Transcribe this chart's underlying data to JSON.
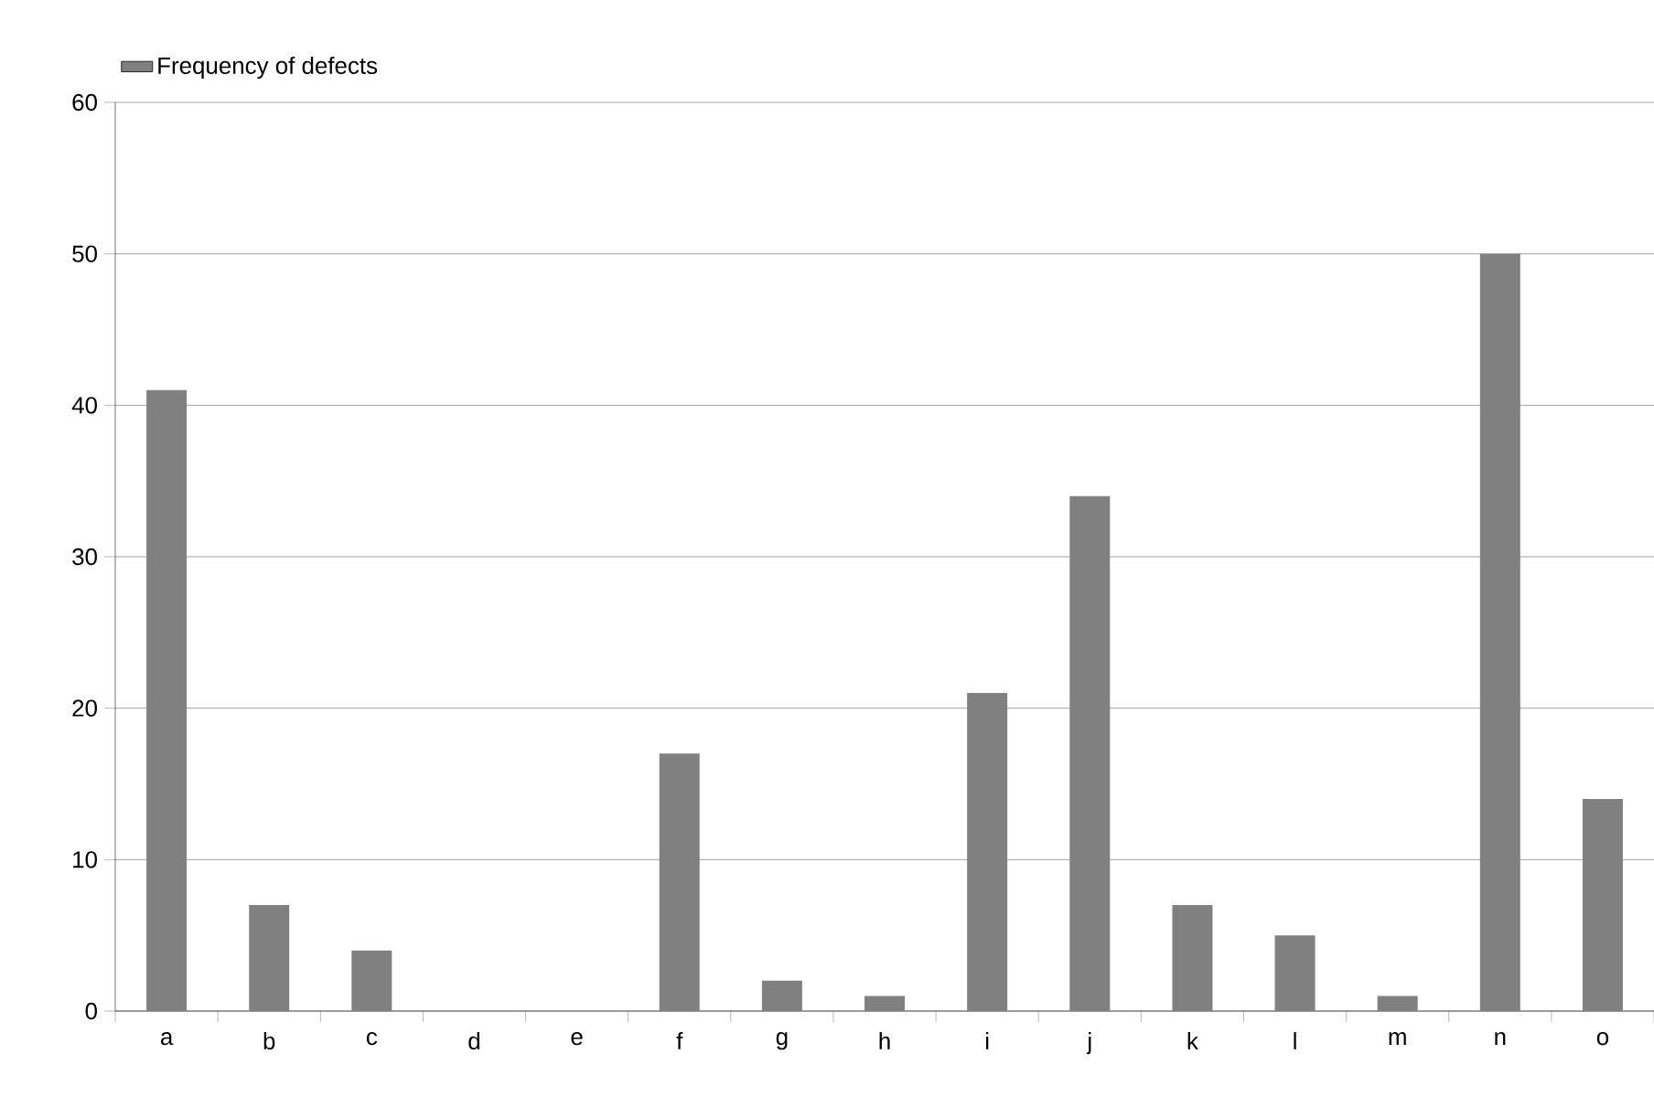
{
  "chart_data": {
    "type": "bar",
    "categories": [
      "a",
      "b",
      "c",
      "d",
      "e",
      "f",
      "g",
      "h",
      "i",
      "j",
      "k",
      "l",
      "m",
      "n",
      "o"
    ],
    "series": [
      {
        "name": "Frequency of defects",
        "color": "#808080",
        "values": [
          41,
          7,
          4,
          0,
          0,
          17,
          2,
          1,
          21,
          34,
          7,
          5,
          1,
          50,
          14
        ]
      }
    ],
    "ylim": [
      0,
      60
    ],
    "yticks": [
      0,
      10,
      20,
      30,
      40,
      50,
      60
    ],
    "grid": "y",
    "legend": "top left"
  }
}
